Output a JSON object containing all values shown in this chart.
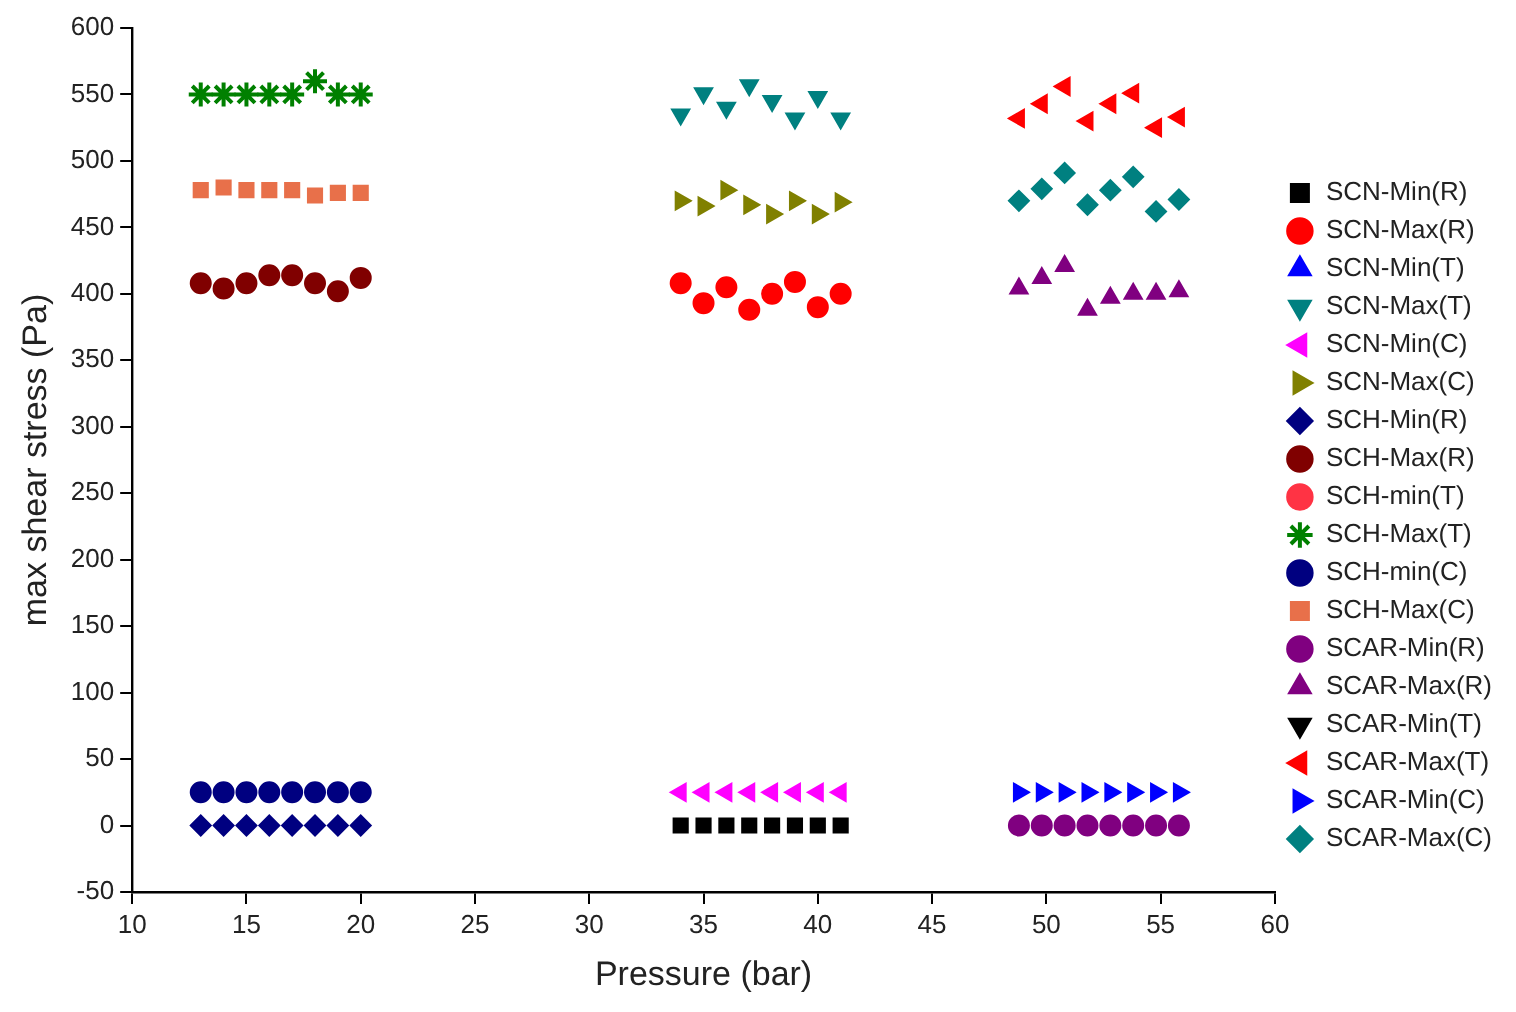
{
  "chart_data": {
    "type": "scatter",
    "xlabel": "Pressure (bar)",
    "ylabel": "max shear stress (Pa)",
    "xlim": [
      10,
      60
    ],
    "xticks": [
      10,
      15,
      20,
      25,
      30,
      35,
      40,
      45,
      50,
      55,
      60
    ],
    "ylim": [
      -50,
      600
    ],
    "yticks": [
      -50,
      0,
      50,
      100,
      150,
      200,
      250,
      300,
      350,
      400,
      450,
      500,
      550,
      600
    ],
    "grid": false,
    "legend": "right",
    "series": [
      {
        "name": "SCN-Min(R)",
        "color": "#000000",
        "marker": "square",
        "x": [
          34,
          35,
          36,
          37,
          38,
          39,
          40,
          41
        ],
        "values": [
          0,
          0,
          0,
          0,
          0,
          0,
          0,
          0
        ]
      },
      {
        "name": "SCN-Max(R)",
        "color": "#ff0000",
        "marker": "circle",
        "x": [
          34,
          35,
          36,
          37,
          38,
          39,
          40,
          41
        ],
        "values": [
          408,
          393,
          405,
          388,
          400,
          409,
          390,
          400
        ]
      },
      {
        "name": "SCN-Min(T)",
        "color": "#0000ff",
        "marker": "triangle",
        "values": [
          null,
          null,
          null,
          null,
          null,
          null,
          null,
          null
        ]
      },
      {
        "name": "SCN-Max(T)",
        "color": "#008080",
        "marker": "triangle-down",
        "x": [
          34,
          35,
          36,
          37,
          38,
          39,
          40,
          41
        ],
        "values": [
          535,
          551,
          540,
          557,
          545,
          532,
          548,
          532
        ]
      },
      {
        "name": "SCN-Min(C)",
        "color": "#ff00ff",
        "marker": "triangle-left",
        "x": [
          34,
          35,
          36,
          37,
          38,
          39,
          40,
          41
        ],
        "values": [
          25,
          25,
          25,
          25,
          25,
          25,
          25,
          25
        ]
      },
      {
        "name": "SCN-Max(C)",
        "color": "#808000",
        "marker": "triangle-right",
        "x": [
          34,
          35,
          36,
          37,
          38,
          39,
          40,
          41
        ],
        "values": [
          470,
          466,
          478,
          467,
          460,
          470,
          460,
          469
        ]
      },
      {
        "name": "SCH-Min(R)",
        "color": "#000080",
        "marker": "diamond",
        "x": [
          13,
          14,
          15,
          16,
          17,
          18,
          19,
          20
        ],
        "values": [
          0,
          0,
          0,
          0,
          0,
          0,
          0,
          0
        ]
      },
      {
        "name": "SCH-Max(R)",
        "color": "#800000",
        "marker": "circle",
        "x": [
          13,
          14,
          15,
          16,
          17,
          18,
          19,
          20
        ],
        "values": [
          408,
          404,
          408,
          414,
          414,
          408,
          402,
          412
        ]
      },
      {
        "name": "SCH-min(T)",
        "color": "#ff3344",
        "marker": "circle",
        "values": [
          null,
          null,
          null,
          null,
          null,
          null,
          null,
          null
        ]
      },
      {
        "name": "SCH-Max(T)",
        "color": "#008000",
        "marker": "cross",
        "x": [
          13,
          14,
          15,
          16,
          17,
          18,
          19,
          20
        ],
        "values": [
          550,
          550,
          550,
          550,
          550,
          560,
          550,
          550
        ]
      },
      {
        "name": "SCH-min(C)",
        "color": "#000080",
        "marker": "circle",
        "x": [
          13,
          14,
          15,
          16,
          17,
          18,
          19,
          20
        ],
        "values": [
          25,
          25,
          25,
          25,
          25,
          25,
          25,
          25
        ]
      },
      {
        "name": "SCH-Max(C)",
        "color": "#e8704a",
        "marker": "square",
        "x": [
          13,
          14,
          15,
          16,
          17,
          18,
          19,
          20
        ],
        "values": [
          478,
          480,
          478,
          478,
          478,
          474,
          476,
          476
        ]
      },
      {
        "name": "SCAR-Min(R)",
        "color": "#800080",
        "marker": "circle",
        "x": [
          48.8,
          49.8,
          50.8,
          51.8,
          52.8,
          53.8,
          54.8,
          55.8
        ],
        "values": [
          0,
          0,
          0,
          0,
          0,
          0,
          0,
          0
        ]
      },
      {
        "name": "SCAR-Max(R)",
        "color": "#800080",
        "marker": "triangle",
        "x": [
          48.8,
          49.8,
          50.8,
          51.8,
          52.8,
          53.8,
          54.8,
          55.8
        ],
        "values": [
          404,
          412,
          421,
          388,
          397,
          400,
          400,
          402
        ]
      },
      {
        "name": "SCAR-Min(T)",
        "color": "#000000",
        "marker": "triangle-down",
        "values": [
          null,
          null,
          null,
          null,
          null,
          null,
          null,
          null
        ]
      },
      {
        "name": "SCAR-Max(T)",
        "color": "#ff0000",
        "marker": "triangle-left",
        "x": [
          48.8,
          49.8,
          50.8,
          51.8,
          52.8,
          53.8,
          54.8,
          55.8
        ],
        "values": [
          532,
          543,
          556,
          530,
          543,
          551,
          525,
          533
        ]
      },
      {
        "name": "SCAR-Min(C)",
        "color": "#0000ff",
        "marker": "triangle-right",
        "x": [
          48.8,
          49.8,
          50.8,
          51.8,
          52.8,
          53.8,
          54.8,
          55.8
        ],
        "values": [
          25,
          25,
          25,
          25,
          25,
          25,
          25,
          25
        ]
      },
      {
        "name": "SCAR-Max(C)",
        "color": "#008080",
        "marker": "diamond",
        "x": [
          48.8,
          49.8,
          50.8,
          51.8,
          52.8,
          53.8,
          54.8,
          55.8
        ],
        "values": [
          470,
          479,
          491,
          467,
          478,
          488,
          462,
          471
        ]
      }
    ]
  }
}
